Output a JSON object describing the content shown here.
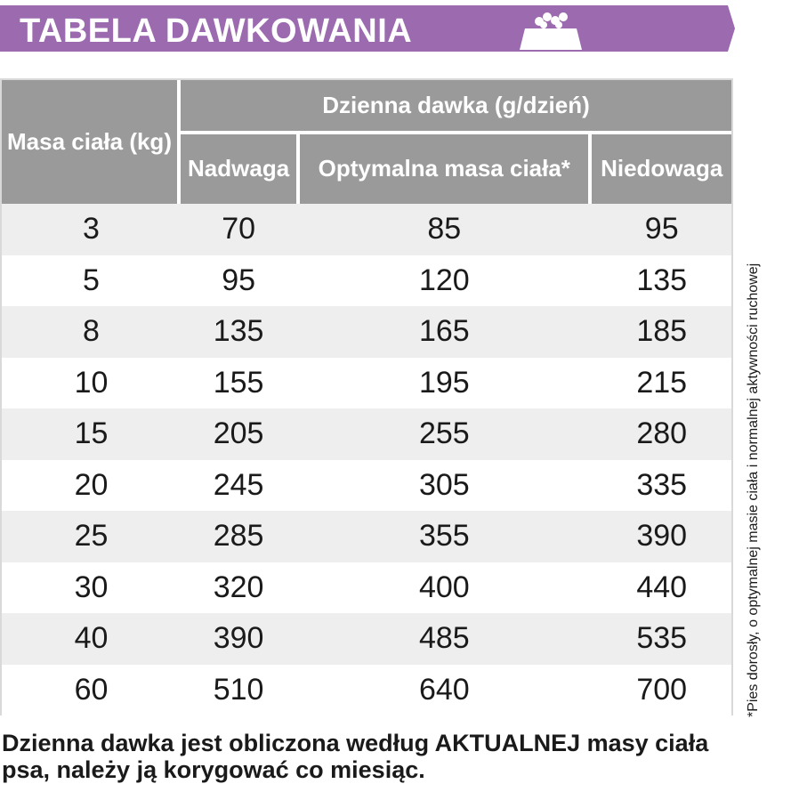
{
  "banner": {
    "title": "TABELA DAWKOWANIA",
    "color": "#9b6aaf",
    "icon": "food-bowl-icon"
  },
  "table": {
    "header_mass": "Masa ciała (kg)",
    "header_daily": "Dzienna dawka (g/dzień)",
    "sub_headers": [
      "Nadwaga",
      "Optymalna masa ciała*",
      "Niedowaga"
    ],
    "header_color": "#9a9a9a",
    "stripe_color": "#eeeeee",
    "rows": [
      [
        "3",
        "70",
        "85",
        "95"
      ],
      [
        "5",
        "95",
        "120",
        "135"
      ],
      [
        "8",
        "135",
        "165",
        "185"
      ],
      [
        "10",
        "155",
        "195",
        "215"
      ],
      [
        "15",
        "205",
        "255",
        "280"
      ],
      [
        "20",
        "245",
        "305",
        "335"
      ],
      [
        "25",
        "285",
        "355",
        "390"
      ],
      [
        "30",
        "320",
        "400",
        "440"
      ],
      [
        "40",
        "390",
        "485",
        "535"
      ],
      [
        "60",
        "510",
        "640",
        "700"
      ]
    ]
  },
  "footnote": "*Pies dorosły, o optymalnej masie ciała i normalnej aktywności ruchowej",
  "bottom_note": "Dzienna dawka jest obliczona według AKTUALNEJ masy ciała psa, należy ją korygować co miesiąc."
}
